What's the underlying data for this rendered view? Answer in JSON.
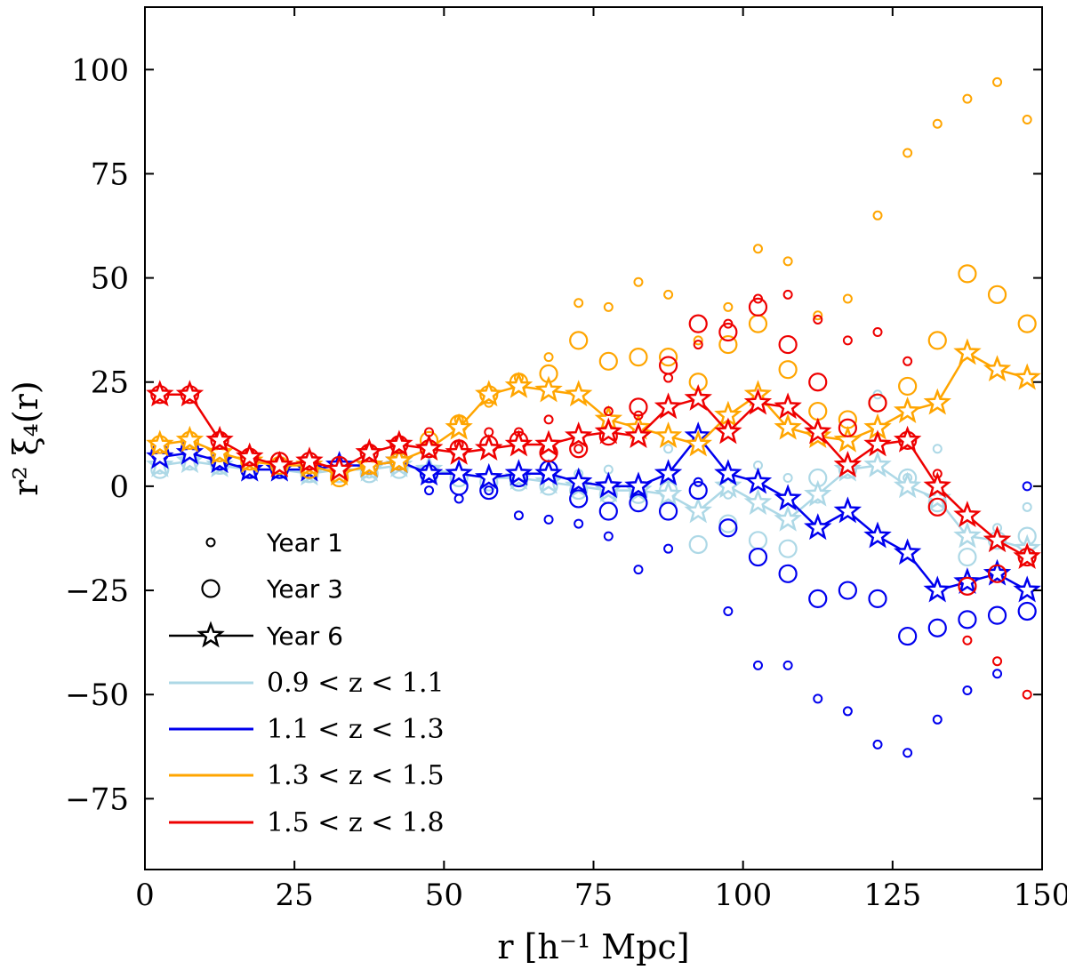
{
  "chart_data": {
    "type": "scatter",
    "title": "",
    "xlabel": "r [h⁻¹ Mpc]",
    "ylabel": "r² ξ₄(r)",
    "xlim": [
      0,
      150
    ],
    "ylim": [
      -92,
      115
    ],
    "xticks": [
      0,
      25,
      50,
      75,
      100,
      125,
      150
    ],
    "xtick_labels": [
      "0",
      "25",
      "50",
      "75",
      "100",
      "125",
      "150"
    ],
    "yticks": [
      100,
      75,
      50,
      25,
      0,
      -25,
      -50,
      -75
    ],
    "ytick_labels": [
      "100",
      "75",
      "50",
      "25",
      "0",
      "−25",
      "−50",
      "−75"
    ],
    "grid": false,
    "legend_position": "lower-left",
    "legend": {
      "markers": [
        {
          "label": "Year 1",
          "style": "small-circle"
        },
        {
          "label": "Year 3",
          "style": "large-circle"
        },
        {
          "label": "Year 6",
          "style": "star-line"
        }
      ],
      "bins": [
        {
          "label": "0.9 < z < 1.1",
          "color": "#add8e6"
        },
        {
          "label": "1.1 < z < 1.3",
          "color": "#0000ee"
        },
        {
          "label": "1.3 < z < 1.5",
          "color": "#ffa500"
        },
        {
          "label": "1.5 < z < 1.8",
          "color": "#ee0000"
        }
      ]
    },
    "x": [
      2.5,
      7.5,
      12.5,
      17.5,
      22.5,
      27.5,
      32.5,
      37.5,
      42.5,
      47.5,
      52.5,
      57.5,
      62.5,
      67.5,
      72.5,
      77.5,
      82.5,
      87.5,
      92.5,
      97.5,
      102.5,
      107.5,
      112.5,
      117.5,
      122.5,
      127.5,
      132.5,
      137.5,
      142.5,
      147.5
    ],
    "series": [
      {
        "name": "0.9 < z < 1.1",
        "color": "#add8e6",
        "year1": [
          4,
          6,
          4,
          3,
          3,
          2,
          3,
          3,
          5,
          4,
          3,
          2,
          3,
          2,
          3,
          4,
          -1,
          9,
          1,
          -2,
          5,
          2,
          -3,
          4,
          22,
          2,
          9,
          -12,
          -10,
          -5
        ],
        "year3": [
          4,
          6,
          5,
          4,
          4,
          3,
          3,
          3,
          4,
          3,
          2,
          1,
          1,
          0,
          -1,
          -2,
          -2,
          -1,
          -14,
          -9,
          -13,
          -15,
          2,
          4,
          20,
          2,
          -4,
          -17,
          -13,
          -12
        ],
        "year6": [
          5,
          6,
          5,
          4,
          4,
          3,
          4,
          4,
          5,
          4,
          3,
          2,
          2,
          1,
          0,
          -1,
          -1,
          -2,
          -6,
          0,
          -4,
          -8,
          -2,
          4,
          5,
          0,
          -3,
          -12,
          -13,
          -15
        ]
      },
      {
        "name": "1.1 < z < 1.3",
        "color": "#0000ee",
        "year1": [
          7,
          8,
          5,
          3,
          4,
          3,
          4,
          4,
          5,
          -1,
          -3,
          -1,
          -7,
          -8,
          -9,
          -12,
          -20,
          -15,
          1,
          -30,
          -43,
          -43,
          -51,
          -54,
          -62,
          -64,
          -56,
          -49,
          -45,
          0
        ],
        "year3": [
          8,
          9,
          6,
          4,
          4,
          4,
          5,
          5,
          6,
          3,
          0,
          -1,
          2,
          4,
          -3,
          -6,
          -4,
          -6,
          -1,
          -10,
          -17,
          -21,
          -27,
          -25,
          -27,
          -36,
          -34,
          -32,
          -31,
          -30
        ],
        "year6": [
          7,
          8,
          6,
          4,
          4,
          4,
          5,
          5,
          6,
          3,
          3,
          2,
          3,
          3,
          1,
          0,
          0,
          3,
          12,
          3,
          1,
          -3,
          -10,
          -6,
          -12,
          -16,
          -25,
          -23,
          -21,
          -25
        ]
      },
      {
        "name": "1.3 < z < 1.5",
        "color": "#ffa500",
        "year1": [
          10,
          11,
          8,
          6,
          5,
          4,
          3,
          5,
          6,
          10,
          16,
          20,
          26,
          31,
          44,
          43,
          49,
          46,
          35,
          43,
          57,
          54,
          41,
          45,
          65,
          80,
          87,
          93,
          97,
          88
        ],
        "year3": [
          10,
          11,
          8,
          6,
          5,
          4,
          2,
          5,
          6,
          11,
          15,
          22,
          25,
          27,
          35,
          30,
          31,
          31,
          25,
          34,
          39,
          28,
          18,
          16,
          20,
          24,
          35,
          51,
          46,
          39
        ],
        "year6": [
          10,
          11,
          8,
          6,
          5,
          5,
          3,
          5,
          6,
          9,
          14,
          22,
          24,
          23,
          22,
          16,
          14,
          12,
          10,
          17,
          22,
          14,
          12,
          11,
          14,
          18,
          20,
          32,
          28,
          26
        ]
      },
      {
        "name": "1.5 < z < 1.8",
        "color": "#ee0000",
        "year1": [
          22,
          22,
          12,
          8,
          6,
          5,
          4,
          9,
          11,
          13,
          10,
          13,
          13,
          16,
          9,
          18,
          17,
          26,
          34,
          39,
          45,
          46,
          40,
          35,
          37,
          30,
          3,
          -37,
          -42,
          -50
        ],
        "year3": [
          22,
          22,
          11,
          7,
          6,
          6,
          5,
          8,
          10,
          9,
          9,
          10,
          11,
          8,
          9,
          12,
          19,
          29,
          39,
          37,
          43,
          34,
          25,
          14,
          20,
          11,
          -5,
          -24,
          -21,
          -17
        ],
        "year6": [
          22,
          22,
          11,
          7,
          5,
          6,
          4,
          8,
          10,
          9,
          8,
          9,
          10,
          10,
          12,
          13,
          12,
          19,
          21,
          13,
          20,
          19,
          13,
          5,
          10,
          11,
          0,
          -7,
          -13,
          -17
        ]
      }
    ]
  }
}
